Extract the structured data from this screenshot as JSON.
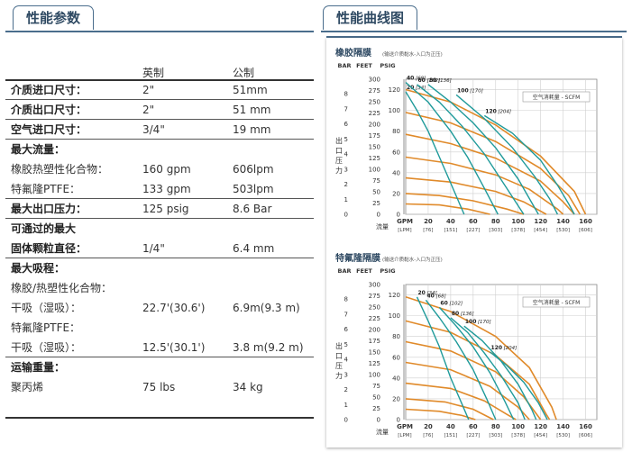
{
  "left_tab": "性能参数",
  "right_tab": "性能曲线图",
  "headers": {
    "imperial": "英制",
    "metric": "公制"
  },
  "rows": [
    {
      "label": "介质进口尺寸：",
      "imperial": "2\"",
      "metric": "51mm",
      "bold": true
    },
    {
      "label": "介质出口尺寸：",
      "imperial": "2\"",
      "metric": "51 mm",
      "bold": true
    },
    {
      "label": "空气进口尺寸：",
      "imperial": "3/4\"",
      "metric": "19 mm",
      "bold": true
    },
    {
      "label": "最大流量：",
      "imperial": "",
      "metric": "",
      "bold": true
    },
    {
      "label": "橡胶热塑性化合物：",
      "imperial": "160 gpm",
      "metric": "606lpm",
      "bold": false
    },
    {
      "label": "特氟隆PTFE：",
      "imperial": "133 gpm",
      "metric": "503lpm",
      "bold": false
    },
    {
      "label": "最大出口压力：",
      "imperial": "125 psig",
      "metric": "8.6 Bar",
      "bold": true
    },
    {
      "label": "可通过的最大",
      "imperial": "",
      "metric": "",
      "bold": true
    },
    {
      "label": "固体颗粒直径：",
      "imperial": "1/4\"",
      "metric": "6.4 mm",
      "bold": true
    },
    {
      "label": "最大吸程：",
      "imperial": "",
      "metric": "",
      "bold": true
    },
    {
      "label": "橡胶/热塑性化合物：",
      "imperial": "",
      "metric": "",
      "bold": false
    },
    {
      "label": "干吸（湿吸）：",
      "imperial": "22.7'(30.6')",
      "metric": "6.9m(9.3 m)",
      "bold": false
    },
    {
      "label": "特氟隆PTFE：",
      "imperial": "",
      "metric": "",
      "bold": false
    },
    {
      "label": "干吸（湿吸）：",
      "imperial": "12.5'(30.1')",
      "metric": "3.8 m(9.2 m)",
      "bold": false
    },
    {
      "label": "运输重量：",
      "imperial": "",
      "metric": "",
      "bold": true
    },
    {
      "label": "聚丙烯",
      "imperial": "75 lbs",
      "metric": "34 kg",
      "bold": false
    }
  ],
  "chart_data": [
    {
      "type": "line",
      "title": "橡胶隔膜",
      "subtitle": "(输送介质黏水-入口为正压)",
      "axis_headers": [
        "BAR",
        "FEET",
        "PSIG"
      ],
      "bar_ticks": [
        "8",
        "7",
        "6",
        "5",
        "4",
        "3",
        "2",
        "1",
        "0"
      ],
      "feet_ticks": [
        "300",
        "275",
        "250",
        "225",
        "200",
        "175",
        "150",
        "125",
        "100",
        "75",
        "50",
        "25",
        "0"
      ],
      "ylabel": "出口压力",
      "yticks": [
        "0",
        "20",
        "40",
        "60",
        "80",
        "100",
        "120"
      ],
      "ylim": [
        0,
        130
      ],
      "xlabel": "流量",
      "x_units": [
        "GPM",
        "[LPM]"
      ],
      "xticks": [
        "20",
        "40",
        "60",
        "80",
        "100",
        "120",
        "140",
        "160"
      ],
      "xticks_lpm": [
        "[76]",
        "[151]",
        "[227]",
        "[303]",
        "[378]",
        "[454]",
        "[530]",
        "[606]"
      ],
      "xlim": [
        0,
        170
      ],
      "legend": "空气消耗量 - SCFM",
      "air_curves": [
        {
          "label": "20",
          "label_lpm": "[34]",
          "points": [
            [
              0,
              118
            ],
            [
              10,
              100
            ],
            [
              20,
              80
            ],
            [
              30,
              55
            ],
            [
              40,
              30
            ],
            [
              52,
              0
            ]
          ]
        },
        {
          "label": "40",
          "label_lpm": "[68]",
          "points": [
            [
              0,
              127
            ],
            [
              20,
              108
            ],
            [
              40,
              80
            ],
            [
              55,
              55
            ],
            [
              70,
              25
            ],
            [
              82,
              0
            ]
          ]
        },
        {
          "label": "60",
          "label_lpm": "[102]",
          "points": [
            [
              10,
              125
            ],
            [
              30,
              108
            ],
            [
              50,
              85
            ],
            [
              70,
              58
            ],
            [
              90,
              25
            ],
            [
              105,
              0
            ]
          ]
        },
        {
          "label": "80",
          "label_lpm": "[136]",
          "points": [
            [
              20,
              125
            ],
            [
              40,
              108
            ],
            [
              60,
              88
            ],
            [
              80,
              64
            ],
            [
              100,
              34
            ],
            [
              118,
              0
            ]
          ]
        },
        {
          "label": "100",
          "label_lpm": "[170]",
          "points": [
            [
              45,
              115
            ],
            [
              70,
              92
            ],
            [
              95,
              64
            ],
            [
              115,
              36
            ],
            [
              128,
              15
            ],
            [
              135,
              0
            ]
          ]
        },
        {
          "label": "120",
          "label_lpm": "[204]",
          "points": [
            [
              70,
              95
            ],
            [
              95,
              78
            ],
            [
              120,
              52
            ],
            [
              135,
              28
            ],
            [
              145,
              10
            ],
            [
              150,
              0
            ]
          ]
        }
      ],
      "flow_curves": [
        {
          "points": [
            [
              0,
              120
            ],
            [
              40,
              108
            ],
            [
              80,
              86
            ],
            [
              120,
              56
            ],
            [
              150,
              22
            ],
            [
              160,
              0
            ]
          ]
        },
        {
          "points": [
            [
              0,
              98
            ],
            [
              40,
              88
            ],
            [
              80,
              70
            ],
            [
              120,
              44
            ],
            [
              145,
              18
            ],
            [
              155,
              0
            ]
          ]
        },
        {
          "points": [
            [
              0,
              77
            ],
            [
              40,
              68
            ],
            [
              80,
              54
            ],
            [
              120,
              32
            ],
            [
              140,
              12
            ],
            [
              150,
              0
            ]
          ]
        },
        {
          "points": [
            [
              0,
              55
            ],
            [
              40,
              49
            ],
            [
              80,
              38
            ],
            [
              110,
              24
            ],
            [
              135,
              5
            ],
            [
              140,
              0
            ]
          ]
        },
        {
          "points": [
            [
              0,
              35
            ],
            [
              40,
              31
            ],
            [
              80,
              22
            ],
            [
              105,
              12
            ],
            [
              125,
              0
            ]
          ]
        },
        {
          "points": [
            [
              0,
              20
            ],
            [
              30,
              18
            ],
            [
              60,
              13
            ],
            [
              90,
              5
            ],
            [
              105,
              0
            ]
          ]
        },
        {
          "points": [
            [
              0,
              10
            ],
            [
              30,
              9
            ],
            [
              55,
              5
            ],
            [
              75,
              0
            ]
          ]
        }
      ]
    },
    {
      "type": "line",
      "title": "特氟隆隔膜",
      "subtitle": "(输送介质黏水-入口为正压)",
      "axis_headers": [
        "BAR",
        "FEET",
        "PSIG"
      ],
      "bar_ticks": [
        "8",
        "7",
        "6",
        "5",
        "4",
        "3",
        "2",
        "1",
        "0"
      ],
      "feet_ticks": [
        "300",
        "275",
        "250",
        "225",
        "200",
        "175",
        "150",
        "125",
        "100",
        "75",
        "50",
        "25",
        "0"
      ],
      "ylabel": "出口压力",
      "yticks": [
        "0",
        "20",
        "40",
        "60",
        "80",
        "100",
        "120"
      ],
      "ylim": [
        0,
        130
      ],
      "xlabel": "流量",
      "x_units": [
        "GPM",
        "[LPM]"
      ],
      "xticks": [
        "20",
        "40",
        "60",
        "80",
        "100",
        "120",
        "140",
        "160"
      ],
      "xticks_lpm": [
        "[76]",
        "[151]",
        "[227]",
        "[303]",
        "[378]",
        "[454]",
        "[530]",
        "[606]"
      ],
      "xlim": [
        0,
        170
      ],
      "legend": "空气消耗量 - SCFM",
      "air_curves": [
        {
          "label": "20",
          "label_lpm": "[34]",
          "points": [
            [
              10,
              118
            ],
            [
              20,
              95
            ],
            [
              30,
              70
            ],
            [
              40,
              40
            ],
            [
              50,
              15
            ],
            [
              56,
              0
            ]
          ]
        },
        {
          "label": "40",
          "label_lpm": "[68]",
          "points": [
            [
              18,
              115
            ],
            [
              30,
              98
            ],
            [
              45,
              75
            ],
            [
              60,
              48
            ],
            [
              72,
              20
            ],
            [
              80,
              0
            ]
          ]
        },
        {
          "label": "60",
          "label_lpm": "[102]",
          "points": [
            [
              30,
              108
            ],
            [
              45,
              90
            ],
            [
              60,
              70
            ],
            [
              75,
              45
            ],
            [
              88,
              18
            ],
            [
              96,
              0
            ]
          ]
        },
        {
          "label": "80",
          "label_lpm": "[136]",
          "points": [
            [
              40,
              98
            ],
            [
              55,
              84
            ],
            [
              70,
              64
            ],
            [
              85,
              42
            ],
            [
              100,
              16
            ],
            [
              106,
              0
            ]
          ]
        },
        {
          "label": "100",
          "label_lpm": "[170]",
          "points": [
            [
              52,
              90
            ],
            [
              68,
              76
            ],
            [
              85,
              56
            ],
            [
              100,
              34
            ],
            [
              112,
              10
            ],
            [
              116,
              0
            ]
          ]
        },
        {
          "label": "120",
          "label_lpm": "[204]",
          "points": [
            [
              75,
              65
            ],
            [
              90,
              52
            ],
            [
              105,
              36
            ],
            [
              118,
              16
            ],
            [
              126,
              0
            ]
          ]
        }
      ],
      "flow_curves": [
        {
          "points": [
            [
              0,
              118
            ],
            [
              40,
              104
            ],
            [
              80,
              80
            ],
            [
              110,
              50
            ],
            [
              130,
              12
            ],
            [
              134,
              0
            ]
          ]
        },
        {
          "points": [
            [
              0,
              95
            ],
            [
              40,
              84
            ],
            [
              80,
              62
            ],
            [
              110,
              34
            ],
            [
              125,
              5
            ],
            [
              128,
              0
            ]
          ]
        },
        {
          "points": [
            [
              0,
              75
            ],
            [
              40,
              66
            ],
            [
              80,
              46
            ],
            [
              105,
              22
            ],
            [
              120,
              0
            ]
          ]
        },
        {
          "points": [
            [
              0,
              55
            ],
            [
              40,
              48
            ],
            [
              75,
              32
            ],
            [
              100,
              12
            ],
            [
              110,
              0
            ]
          ]
        },
        {
          "points": [
            [
              0,
              35
            ],
            [
              40,
              30
            ],
            [
              70,
              18
            ],
            [
              90,
              5
            ],
            [
              98,
              0
            ]
          ]
        },
        {
          "points": [
            [
              0,
              20
            ],
            [
              35,
              17
            ],
            [
              60,
              10
            ],
            [
              78,
              0
            ]
          ]
        },
        {
          "points": [
            [
              0,
              10
            ],
            [
              30,
              8
            ],
            [
              50,
              4
            ],
            [
              62,
              0
            ]
          ]
        }
      ]
    }
  ],
  "colors": {
    "tab_border": "#4a6d8c",
    "air_curve": "#1f9a9a",
    "flow_curve": "#e08a2a",
    "grid": "#cfcfcf"
  }
}
